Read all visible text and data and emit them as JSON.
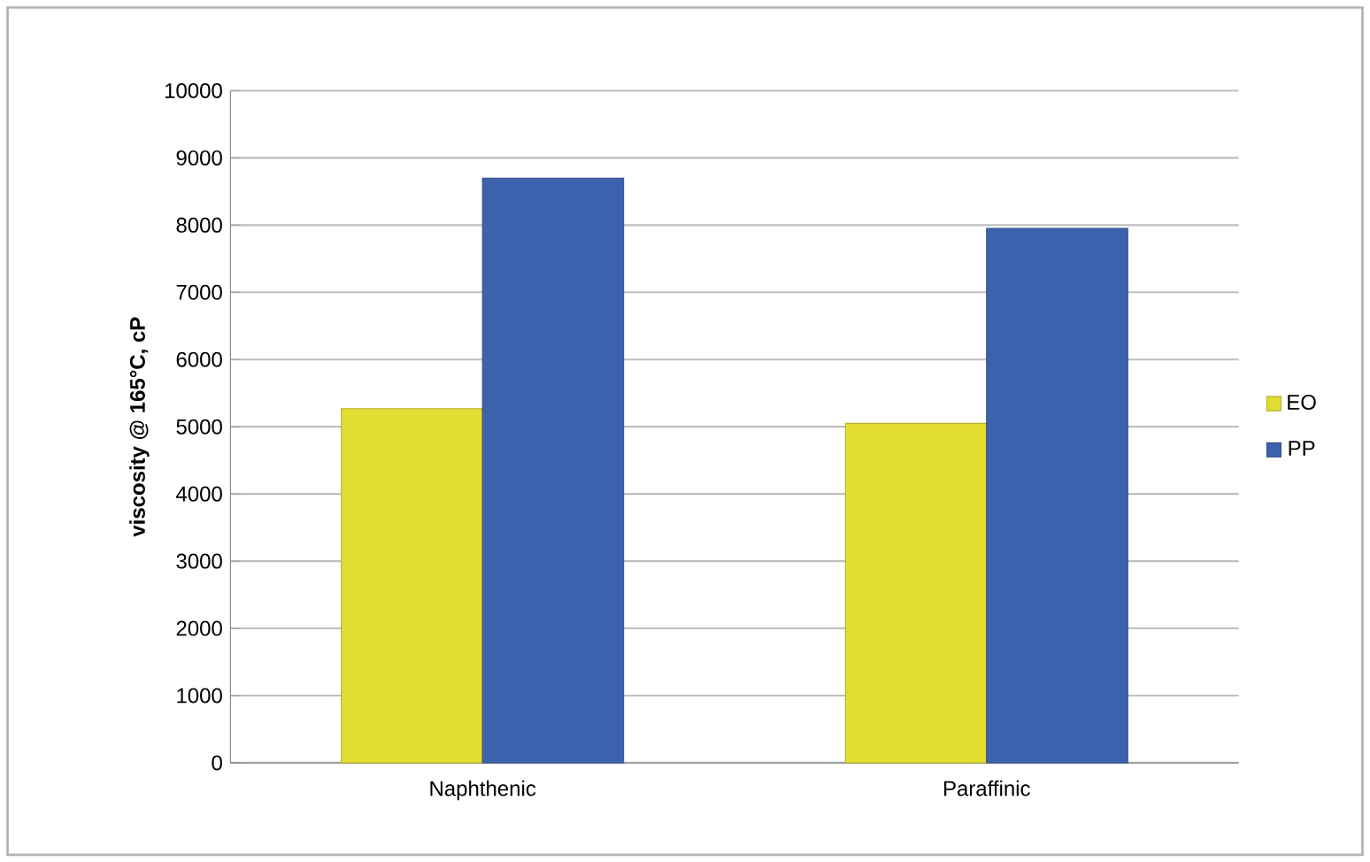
{
  "chart_data": {
    "type": "bar",
    "ylabel": "viscosity @ 165°C, cP",
    "categories": [
      "Naphthenic",
      "Paraffinic"
    ],
    "series": [
      {
        "name": "EO",
        "color": "#e3dc33",
        "values": [
          5270,
          5050
        ]
      },
      {
        "name": "PP",
        "color": "#3d62ad",
        "values": [
          8700,
          7950
        ]
      }
    ],
    "ylim": [
      0,
      10000
    ],
    "yticks": [
      0,
      1000,
      2000,
      3000,
      4000,
      5000,
      6000,
      7000,
      8000,
      9000,
      10000
    ],
    "grid": "y",
    "legend": "right"
  }
}
